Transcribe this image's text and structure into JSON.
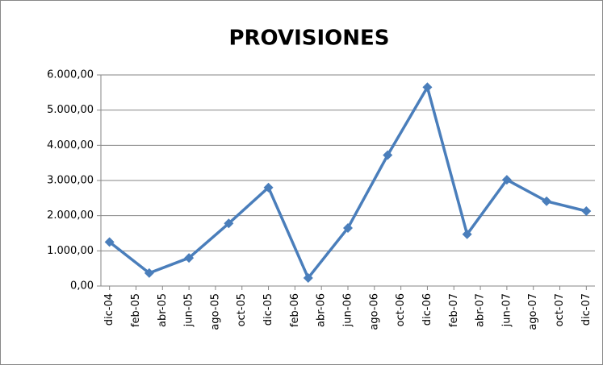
{
  "chart_data": {
    "type": "line",
    "title": "PROVISIONES",
    "x": [
      "2004-12",
      "2005-03",
      "2005-06",
      "2005-09",
      "2005-12",
      "2006-03",
      "2006-06",
      "2006-09",
      "2006-12",
      "2007-03",
      "2007-06",
      "2007-09",
      "2007-12"
    ],
    "series": [
      {
        "name": "PROVISIONES",
        "color": "#4a7ebb",
        "values": [
          1250,
          370,
          800,
          1780,
          2800,
          230,
          1650,
          3720,
          5650,
          1470,
          3020,
          2410,
          2130
        ]
      }
    ],
    "xticks": [
      {
        "value": "2004-12",
        "label": "dic-04"
      },
      {
        "value": "2005-02",
        "label": "feb-05"
      },
      {
        "value": "2005-04",
        "label": "abr-05"
      },
      {
        "value": "2005-06",
        "label": "jun-05"
      },
      {
        "value": "2005-08",
        "label": "ago-05"
      },
      {
        "value": "2005-10",
        "label": "oct-05"
      },
      {
        "value": "2005-12",
        "label": "dic-05"
      },
      {
        "value": "2006-02",
        "label": "feb-06"
      },
      {
        "value": "2006-04",
        "label": "abr-06"
      },
      {
        "value": "2006-06",
        "label": "jun-06"
      },
      {
        "value": "2006-08",
        "label": "ago-06"
      },
      {
        "value": "2006-10",
        "label": "oct-06"
      },
      {
        "value": "2006-12",
        "label": "dic-06"
      },
      {
        "value": "2007-02",
        "label": "feb-07"
      },
      {
        "value": "2007-04",
        "label": "abr-07"
      },
      {
        "value": "2007-06",
        "label": "jun-07"
      },
      {
        "value": "2007-08",
        "label": "ago-07"
      },
      {
        "value": "2007-10",
        "label": "oct-07"
      },
      {
        "value": "2007-12",
        "label": "dic-07"
      }
    ],
    "ylim": [
      0,
      6000
    ],
    "yticks": [
      {
        "value": 0,
        "label": "0,00"
      },
      {
        "value": 1000,
        "label": "1.000,00"
      },
      {
        "value": 2000,
        "label": "2.000,00"
      },
      {
        "value": 3000,
        "label": "3.000,00"
      },
      {
        "value": 4000,
        "label": "4.000,00"
      },
      {
        "value": 5000,
        "label": "5.000,00"
      },
      {
        "value": 6000,
        "label": "6.000,00"
      }
    ],
    "grid": true
  }
}
